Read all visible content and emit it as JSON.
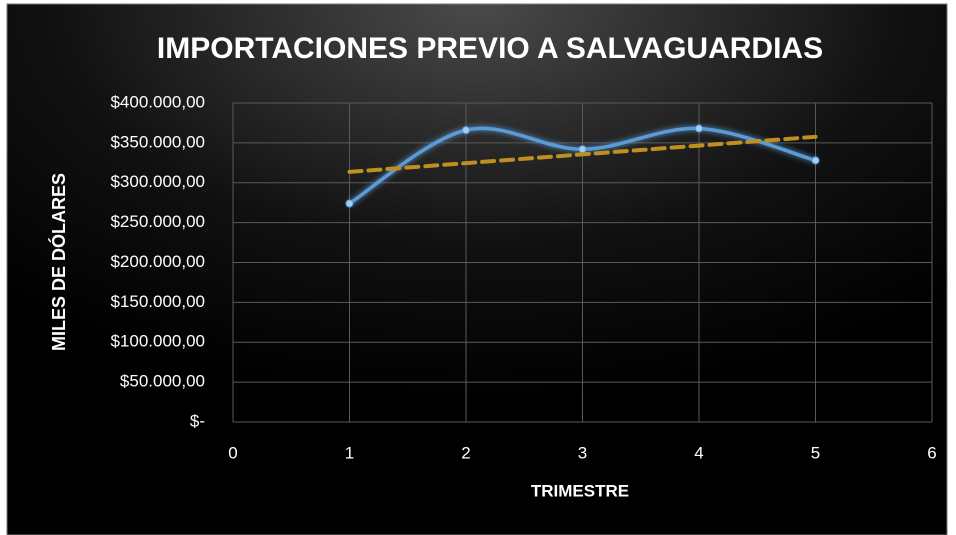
{
  "chart_data": {
    "type": "scatter",
    "title": "IMPORTACIONES PREVIO A SALVAGUARDIAS",
    "x_label": "TRIMESTRE",
    "y_label": "MILES DE DÓLARES",
    "xlim": [
      0,
      6
    ],
    "xticks": [
      0,
      1,
      2,
      3,
      4,
      5,
      6
    ],
    "ylim": [
      0,
      400000
    ],
    "yticks": [
      {
        "value": 0,
        "label": "$-"
      },
      {
        "value": 50000,
        "label": "$50.000,00"
      },
      {
        "value": 100000,
        "label": "$100.000,00"
      },
      {
        "value": 150000,
        "label": "$150.000,00"
      },
      {
        "value": 200000,
        "label": "$200.000,00"
      },
      {
        "value": 250000,
        "label": "$250.000,00"
      },
      {
        "value": 300000,
        "label": "$300.000,00"
      },
      {
        "value": 350000,
        "label": "$350.000,00"
      },
      {
        "value": 400000,
        "label": "$400.000,00"
      }
    ],
    "grid": true,
    "series": [
      {
        "color": "#5b9bd5",
        "smooth": true,
        "markers": true,
        "x": [
          1,
          2,
          3,
          4,
          5
        ],
        "values": [
          274000,
          366000,
          342000,
          368000,
          328000
        ]
      },
      {
        "color": "#bf9020",
        "dashed": true,
        "x": [
          1,
          5
        ],
        "values": [
          313600,
          357600
        ]
      }
    ]
  }
}
